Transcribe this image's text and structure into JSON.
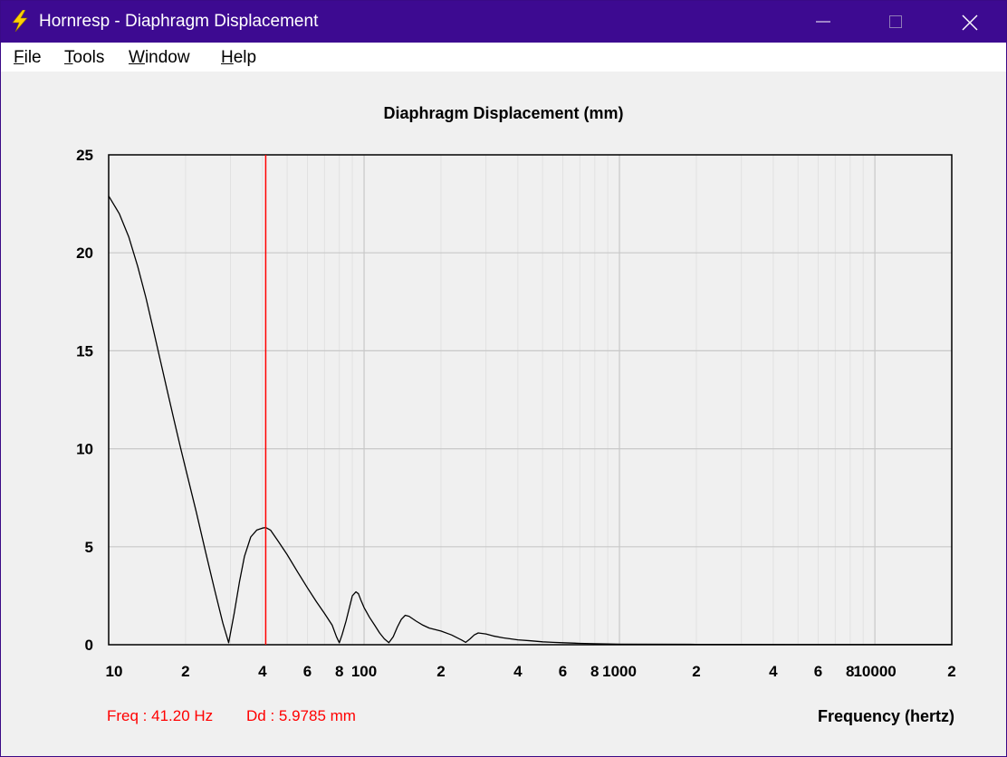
{
  "window": {
    "title": "Hornresp - Diaphragm Displacement"
  },
  "menu": [
    {
      "key": "F",
      "rest": "ile"
    },
    {
      "key": "T",
      "rest": "ools"
    },
    {
      "key": "W",
      "rest": "indow"
    },
    {
      "key": "H",
      "rest": "elp"
    }
  ],
  "readout": {
    "freq": "Freq : 41.20 Hz",
    "dd": "Dd : 5.9785 mm"
  },
  "colors": {
    "titlebar": "#3d0a91",
    "curve": "#000000",
    "marker": "#ff0000",
    "grid": "#c8c8c8",
    "minor_grid": "#e2e2e2"
  },
  "chart_data": {
    "type": "line",
    "title": "Diaphragm Displacement (mm)",
    "xlabel": "Frequency (hertz)",
    "ylabel": "",
    "xscale": "log",
    "xlim": [
      10,
      20000
    ],
    "ylim": [
      0,
      25
    ],
    "y_ticks": [
      0,
      5,
      10,
      15,
      20,
      25
    ],
    "x_tick_labels": [
      {
        "value": 10,
        "label": "10"
      },
      {
        "value": 20,
        "label": "2"
      },
      {
        "value": 40,
        "label": "4"
      },
      {
        "value": 60,
        "label": "6"
      },
      {
        "value": 80,
        "label": "8"
      },
      {
        "value": 100,
        "label": "100"
      },
      {
        "value": 200,
        "label": "2"
      },
      {
        "value": 400,
        "label": "4"
      },
      {
        "value": 600,
        "label": "6"
      },
      {
        "value": 800,
        "label": "8"
      },
      {
        "value": 1000,
        "label": "1000"
      },
      {
        "value": 2000,
        "label": "2"
      },
      {
        "value": 4000,
        "label": "4"
      },
      {
        "value": 6000,
        "label": "6"
      },
      {
        "value": 8000,
        "label": "8"
      },
      {
        "value": 10000,
        "label": "10000"
      },
      {
        "value": 20000,
        "label": "2"
      }
    ],
    "marker": {
      "x": 41.2,
      "y": 5.9785
    },
    "series": [
      {
        "name": "Diaphragm Displacement",
        "x": [
          10,
          11,
          12,
          13,
          14,
          15,
          16,
          17,
          18,
          19,
          20,
          22,
          24,
          26,
          28,
          29.5,
          31,
          32.5,
          34,
          36,
          38,
          40,
          41.2,
          43,
          46,
          50,
          55,
          60,
          65,
          70,
          75,
          78,
          80,
          82,
          85,
          88,
          90,
          93,
          95,
          97,
          100,
          105,
          110,
          115,
          120,
          125,
          130,
          135,
          140,
          145,
          150,
          160,
          170,
          180,
          200,
          220,
          240,
          250,
          260,
          270,
          280,
          300,
          320,
          350,
          400,
          450,
          500,
          550,
          600,
          700,
          800,
          900,
          1000,
          2000,
          5000,
          10000,
          20000
        ],
        "y": [
          22.9,
          22.0,
          20.8,
          19.3,
          17.7,
          16.0,
          14.4,
          12.9,
          11.5,
          10.2,
          9.0,
          6.8,
          4.7,
          2.8,
          1.1,
          0.1,
          1.6,
          3.2,
          4.5,
          5.5,
          5.85,
          5.95,
          5.9785,
          5.85,
          5.3,
          4.6,
          3.7,
          2.9,
          2.2,
          1.6,
          1.0,
          0.4,
          0.1,
          0.5,
          1.2,
          2.0,
          2.5,
          2.7,
          2.6,
          2.3,
          1.9,
          1.4,
          1.0,
          0.6,
          0.3,
          0.1,
          0.4,
          0.9,
          1.3,
          1.5,
          1.45,
          1.2,
          1.0,
          0.85,
          0.7,
          0.5,
          0.25,
          0.12,
          0.3,
          0.5,
          0.6,
          0.55,
          0.45,
          0.35,
          0.25,
          0.2,
          0.15,
          0.12,
          0.1,
          0.07,
          0.05,
          0.04,
          0.03,
          0.02,
          0.01,
          0.01,
          0.01
        ]
      }
    ]
  }
}
